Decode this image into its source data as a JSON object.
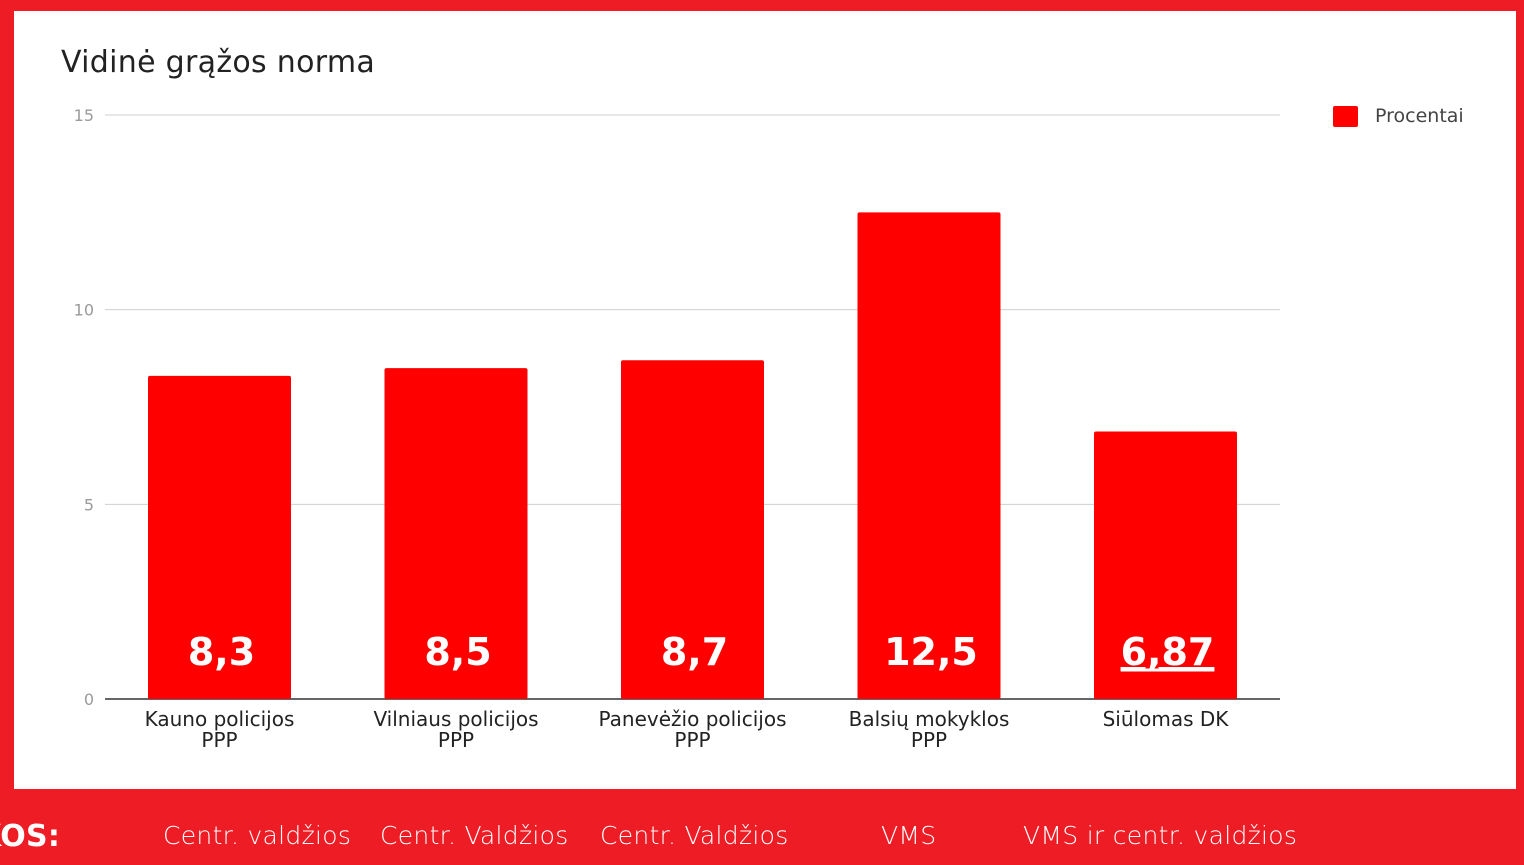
{
  "chart_data": {
    "type": "bar",
    "title": "Vidinė grąžos norma",
    "categories": [
      [
        "Kauno policijos",
        "PPP"
      ],
      [
        "Vilniaus policijos",
        "PPP"
      ],
      [
        "Panevėžio policijos",
        "PPP"
      ],
      [
        "Balsių mokyklos",
        "PPP"
      ],
      [
        "Siūlomas DK"
      ]
    ],
    "series": [
      {
        "name": "Procentai",
        "values": [
          8.3,
          8.5,
          8.7,
          12.5,
          6.87
        ],
        "labels": [
          "8,3",
          "8,5",
          "8,7",
          "12,5",
          "6,87"
        ],
        "underlined": [
          false,
          false,
          false,
          false,
          true
        ]
      }
    ],
    "ylim": [
      0,
      15
    ],
    "yticks": [
      0,
      5,
      10,
      15
    ],
    "grid": true,
    "legend": "right",
    "bar_color": "#ff0000"
  },
  "footer": {
    "label": "KOS:",
    "items": [
      "Centr. valdžios",
      "Centr. Valdžios",
      "Centr. Valdžios",
      "VMS",
      "VMS ir centr. valdžios"
    ]
  }
}
